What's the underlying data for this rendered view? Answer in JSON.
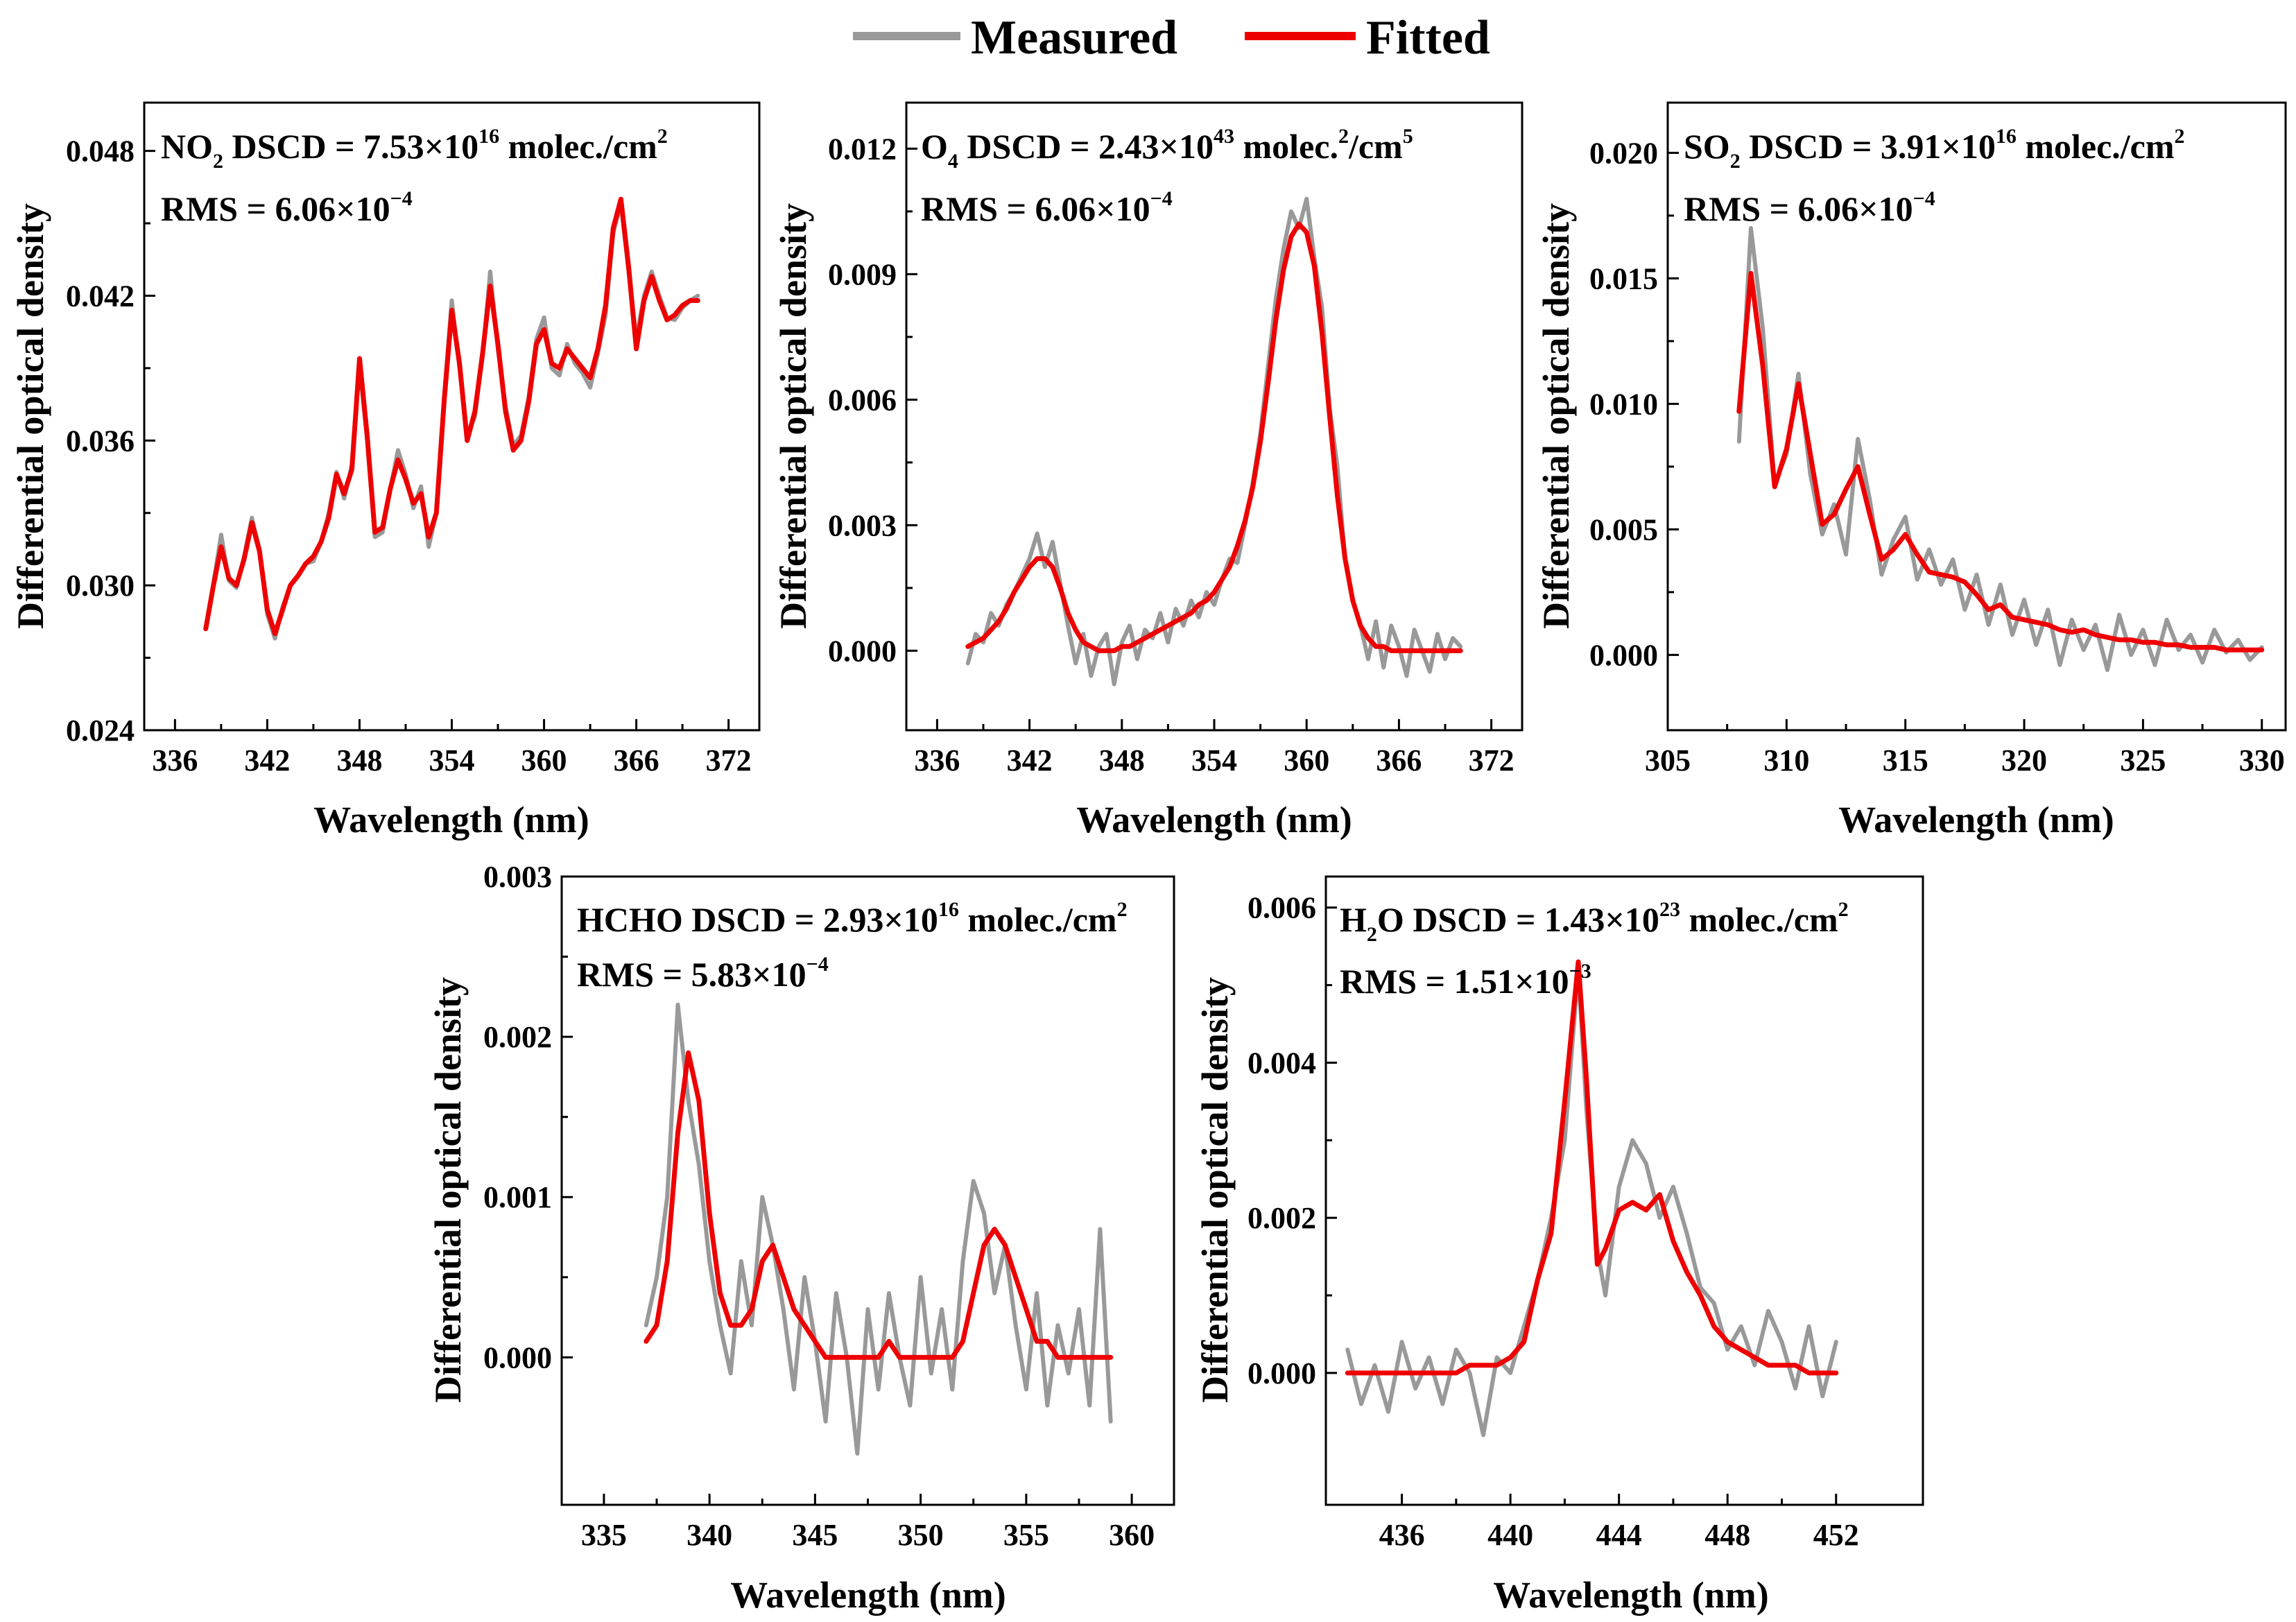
{
  "legend": {
    "entries": [
      {
        "label": "Measured",
        "color": "#999999"
      },
      {
        "label": "Fitted",
        "color": "#ee0000"
      }
    ]
  },
  "chart_data": [
    {
      "type": "line",
      "id": "no2",
      "xlabel": "Wavelength (nm)",
      "ylabel": "Differential optical density",
      "xlim": [
        334,
        374
      ],
      "ylim": [
        0.024,
        0.05
      ],
      "xticks": [
        336,
        342,
        348,
        354,
        360,
        366,
        372
      ],
      "yticks": [
        0.024,
        0.03,
        0.036,
        0.042,
        0.048
      ],
      "ytick_labels": [
        "0.024",
        "0.030",
        "0.036",
        "0.042",
        "0.048"
      ],
      "annotation": {
        "species_main": "NO",
        "species_sub": "2",
        "dscd_text": " DSCD = 7.53×10",
        "dscd_exp": "16",
        "dscd_unit": " molec./cm",
        "dscd_unit_exp": "2",
        "rms_text": "RMS = 6.06×10",
        "rms_exp": "−4"
      },
      "x": [
        338.0,
        338.5,
        339.0,
        339.5,
        340.0,
        340.5,
        341.0,
        341.5,
        342.0,
        342.5,
        343.0,
        343.5,
        344.0,
        344.5,
        345.0,
        345.5,
        346.0,
        346.5,
        347.0,
        347.5,
        348.0,
        348.5,
        349.0,
        349.5,
        350.0,
        350.5,
        351.0,
        351.5,
        352.0,
        352.5,
        353.0,
        353.5,
        354.0,
        354.5,
        355.0,
        355.5,
        356.0,
        356.5,
        357.0,
        357.5,
        358.0,
        358.5,
        359.0,
        359.5,
        360.0,
        360.5,
        361.0,
        361.5,
        362.0,
        362.5,
        363.0,
        363.5,
        364.0,
        364.5,
        365.0,
        365.5,
        366.0,
        366.5,
        367.0,
        367.5,
        368.0,
        368.5,
        369.0,
        369.5,
        370.0
      ],
      "series": [
        {
          "name": "Measured",
          "values": [
            0.0282,
            0.0301,
            0.0321,
            0.0302,
            0.0299,
            0.0312,
            0.0328,
            0.0315,
            0.0288,
            0.0278,
            0.0291,
            0.03,
            0.0304,
            0.0309,
            0.031,
            0.0318,
            0.033,
            0.0347,
            0.0336,
            0.035,
            0.0391,
            0.036,
            0.032,
            0.0322,
            0.034,
            0.0356,
            0.0346,
            0.0332,
            0.0341,
            0.0316,
            0.033,
            0.0378,
            0.0418,
            0.039,
            0.0362,
            0.037,
            0.0395,
            0.043,
            0.0398,
            0.0374,
            0.0358,
            0.0362,
            0.0378,
            0.0402,
            0.0411,
            0.039,
            0.0387,
            0.04,
            0.0392,
            0.0388,
            0.0382,
            0.0396,
            0.0412,
            0.0446,
            0.0458,
            0.043,
            0.0402,
            0.042,
            0.043,
            0.042,
            0.0411,
            0.041,
            0.0415,
            0.0418,
            0.042
          ]
        },
        {
          "name": "Fitted",
          "values": [
            0.0282,
            0.03,
            0.0316,
            0.0303,
            0.03,
            0.0311,
            0.0326,
            0.0314,
            0.029,
            0.028,
            0.029,
            0.03,
            0.0304,
            0.0309,
            0.0312,
            0.0318,
            0.0328,
            0.0346,
            0.0338,
            0.0348,
            0.0394,
            0.0362,
            0.0322,
            0.0324,
            0.034,
            0.0352,
            0.0344,
            0.0334,
            0.0338,
            0.032,
            0.033,
            0.0376,
            0.0414,
            0.0392,
            0.036,
            0.0372,
            0.0396,
            0.0424,
            0.04,
            0.0372,
            0.0356,
            0.036,
            0.0376,
            0.04,
            0.0406,
            0.0392,
            0.039,
            0.0398,
            0.0394,
            0.039,
            0.0386,
            0.0398,
            0.0416,
            0.0448,
            0.046,
            0.0432,
            0.0398,
            0.0418,
            0.0428,
            0.0418,
            0.041,
            0.0412,
            0.0416,
            0.0418,
            0.0418
          ]
        }
      ]
    },
    {
      "type": "line",
      "id": "o4",
      "xlabel": "Wavelength (nm)",
      "ylabel": "Differential optical density",
      "xlim": [
        334,
        374
      ],
      "ylim": [
        -0.0019,
        0.0131
      ],
      "xticks": [
        336,
        342,
        348,
        354,
        360,
        366,
        372
      ],
      "yticks": [
        0.0,
        0.003,
        0.006,
        0.009,
        0.012
      ],
      "ytick_labels": [
        "0.000",
        "0.003",
        "0.006",
        "0.009",
        "0.012"
      ],
      "annotation": {
        "species_main": "O",
        "species_sub": "4",
        "dscd_text": " DSCD = 2.43×10",
        "dscd_exp": "43",
        "dscd_unit": " molec.",
        "dscd_unit_exp": "2",
        "dscd_unit_tail": "/cm",
        "dscd_unit_tail_exp": "5",
        "rms_text": "RMS = 6.06×10",
        "rms_exp": "−4"
      },
      "x": [
        338.0,
        338.5,
        339.0,
        339.5,
        340.0,
        340.5,
        341.0,
        341.5,
        342.0,
        342.5,
        343.0,
        343.5,
        344.0,
        344.5,
        345.0,
        345.5,
        346.0,
        346.5,
        347.0,
        347.5,
        348.0,
        348.5,
        349.0,
        349.5,
        350.0,
        350.5,
        351.0,
        351.5,
        352.0,
        352.5,
        353.0,
        353.5,
        354.0,
        354.5,
        355.0,
        355.5,
        356.0,
        356.5,
        357.0,
        357.5,
        358.0,
        358.5,
        359.0,
        359.5,
        360.0,
        360.5,
        361.0,
        361.5,
        362.0,
        362.5,
        363.0,
        363.5,
        364.0,
        364.5,
        365.0,
        365.5,
        366.0,
        366.5,
        367.0,
        367.5,
        368.0,
        368.5,
        369.0,
        369.5,
        370.0
      ],
      "series": [
        {
          "name": "Measured",
          "values": [
            -0.0003,
            0.0004,
            0.0002,
            0.0009,
            0.0006,
            0.0011,
            0.0014,
            0.0018,
            0.0022,
            0.0028,
            0.002,
            0.0026,
            0.0016,
            0.0006,
            -0.0003,
            0.0004,
            -0.0006,
            0.0001,
            0.0004,
            -0.0008,
            0.0002,
            0.0006,
            -0.0002,
            0.0005,
            0.0003,
            0.0009,
            0.0002,
            0.001,
            0.0006,
            0.0012,
            0.0008,
            0.0014,
            0.0011,
            0.0017,
            0.0022,
            0.0021,
            0.003,
            0.004,
            0.0052,
            0.0068,
            0.0084,
            0.0096,
            0.0105,
            0.0101,
            0.0108,
            0.0094,
            0.0082,
            0.0058,
            0.0044,
            0.0022,
            0.0012,
            0.0006,
            -0.0002,
            0.0007,
            -0.0004,
            0.0006,
            0.0001,
            -0.0006,
            0.0005,
            0.0,
            -0.0005,
            0.0004,
            -0.0002,
            0.0003,
            0.0001
          ]
        },
        {
          "name": "Fitted",
          "values": [
            0.0001,
            0.0002,
            0.0003,
            0.0005,
            0.0007,
            0.001,
            0.0014,
            0.0017,
            0.002,
            0.0022,
            0.0022,
            0.002,
            0.0015,
            0.0009,
            0.0005,
            0.0002,
            0.0001,
            0.0,
            0.0,
            0.0,
            0.0001,
            0.0001,
            0.0002,
            0.0003,
            0.0004,
            0.0005,
            0.0006,
            0.0007,
            0.0008,
            0.0009,
            0.0011,
            0.0012,
            0.0014,
            0.0017,
            0.002,
            0.0025,
            0.0031,
            0.0039,
            0.005,
            0.0064,
            0.0079,
            0.0091,
            0.0099,
            0.0102,
            0.01,
            0.0092,
            0.0076,
            0.0056,
            0.0037,
            0.0022,
            0.0012,
            0.0006,
            0.0003,
            0.0001,
            0.0001,
            0.0,
            0.0,
            0.0,
            0.0,
            0.0,
            0.0,
            0.0,
            0.0,
            0.0,
            0.0
          ]
        }
      ]
    },
    {
      "type": "line",
      "id": "so2",
      "xlabel": "Wavelength (nm)",
      "ylabel": "Differential optical density",
      "xlim": [
        305,
        331
      ],
      "ylim": [
        -0.003,
        0.022
      ],
      "xticks": [
        305,
        310,
        315,
        320,
        325,
        330
      ],
      "yticks": [
        0.0,
        0.005,
        0.01,
        0.015,
        0.02
      ],
      "ytick_labels": [
        "0.000",
        "0.005",
        "0.010",
        "0.015",
        "0.020"
      ],
      "annotation": {
        "species_main": "SO",
        "species_sub": "2",
        "dscd_text": " DSCD = 3.91×10",
        "dscd_exp": "16",
        "dscd_unit": " molec./cm",
        "dscd_unit_exp": "2",
        "rms_text": "RMS = 6.06×10",
        "rms_exp": "−4"
      },
      "x": [
        308.0,
        308.5,
        309.0,
        309.5,
        310.0,
        310.5,
        311.0,
        311.5,
        312.0,
        312.5,
        313.0,
        313.5,
        314.0,
        314.5,
        315.0,
        315.5,
        316.0,
        316.5,
        317.0,
        317.5,
        318.0,
        318.5,
        319.0,
        319.5,
        320.0,
        320.5,
        321.0,
        321.5,
        322.0,
        322.5,
        323.0,
        323.5,
        324.0,
        324.5,
        325.0,
        325.5,
        326.0,
        326.5,
        327.0,
        327.5,
        328.0,
        328.5,
        329.0,
        329.5,
        330.0
      ],
      "series": [
        {
          "name": "Measured",
          "values": [
            0.0085,
            0.017,
            0.013,
            0.0068,
            0.008,
            0.0112,
            0.0072,
            0.0048,
            0.006,
            0.004,
            0.0086,
            0.0062,
            0.0032,
            0.0046,
            0.0055,
            0.003,
            0.0042,
            0.0028,
            0.0038,
            0.0018,
            0.0032,
            0.0012,
            0.0028,
            0.0008,
            0.0022,
            0.0004,
            0.0018,
            -0.0004,
            0.0014,
            0.0002,
            0.0012,
            -0.0006,
            0.0016,
            0.0,
            0.001,
            -0.0004,
            0.0014,
            0.0002,
            0.0008,
            -0.0003,
            0.001,
            0.0001,
            0.0006,
            -0.0002,
            0.0003
          ]
        },
        {
          "name": "Fitted",
          "values": [
            0.0097,
            0.0152,
            0.0115,
            0.0067,
            0.0082,
            0.0108,
            0.008,
            0.0052,
            0.0056,
            0.0066,
            0.0075,
            0.0056,
            0.0038,
            0.0042,
            0.0048,
            0.004,
            0.0033,
            0.0032,
            0.0031,
            0.0029,
            0.0024,
            0.0018,
            0.002,
            0.0015,
            0.0014,
            0.0013,
            0.0012,
            0.001,
            0.0009,
            0.001,
            0.0008,
            0.0007,
            0.0006,
            0.0006,
            0.0005,
            0.0005,
            0.0004,
            0.0004,
            0.0003,
            0.0003,
            0.0003,
            0.0002,
            0.0002,
            0.0002,
            0.0002
          ]
        }
      ]
    },
    {
      "type": "line",
      "id": "hcho",
      "xlabel": "Wavelength (nm)",
      "ylabel": "Differential optical density",
      "xlim": [
        333,
        362
      ],
      "ylim": [
        -0.00092,
        0.003
      ],
      "xticks": [
        335,
        340,
        345,
        350,
        355,
        360
      ],
      "yticks": [
        0.0,
        0.001,
        0.002,
        0.003
      ],
      "ytick_labels": [
        "0.000",
        "0.001",
        "0.002",
        "0.003"
      ],
      "annotation": {
        "species_main": "HCHO",
        "species_sub": "",
        "dscd_text": " DSCD = 2.93×10",
        "dscd_exp": "16",
        "dscd_unit": " molec./cm",
        "dscd_unit_exp": "2",
        "rms_text": "RMS = 5.83×10",
        "rms_exp": "−4"
      },
      "x": [
        337.0,
        337.5,
        338.0,
        338.5,
        339.0,
        339.5,
        340.0,
        340.5,
        341.0,
        341.5,
        342.0,
        342.5,
        343.0,
        343.5,
        344.0,
        344.5,
        345.0,
        345.5,
        346.0,
        346.5,
        347.0,
        347.5,
        348.0,
        348.5,
        349.0,
        349.5,
        350.0,
        350.5,
        351.0,
        351.5,
        352.0,
        352.5,
        353.0,
        353.5,
        354.0,
        354.5,
        355.0,
        355.5,
        356.0,
        356.5,
        357.0,
        357.5,
        358.0,
        358.5,
        359.0
      ],
      "series": [
        {
          "name": "Measured",
          "values": [
            0.0002,
            0.0005,
            0.001,
            0.0022,
            0.0016,
            0.0012,
            0.0006,
            0.0002,
            -0.0001,
            0.0006,
            0.0002,
            0.001,
            0.0007,
            0.0003,
            -0.0002,
            0.0005,
            0.0001,
            -0.0004,
            0.0004,
            0.0,
            -0.0006,
            0.0003,
            -0.0002,
            0.0004,
            0.0,
            -0.0003,
            0.0005,
            -0.0001,
            0.0003,
            -0.0002,
            0.0006,
            0.0011,
            0.0009,
            0.0004,
            0.0007,
            0.0002,
            -0.0002,
            0.0004,
            -0.0003,
            0.0002,
            -0.0001,
            0.0003,
            -0.0003,
            0.0008,
            -0.0004
          ]
        },
        {
          "name": "Fitted",
          "values": [
            0.0001,
            0.0002,
            0.0006,
            0.0014,
            0.0019,
            0.0016,
            0.0009,
            0.0004,
            0.0002,
            0.0002,
            0.0003,
            0.0006,
            0.0007,
            0.0005,
            0.0003,
            0.0002,
            0.0001,
            0.0,
            0.0,
            0.0,
            0.0,
            0.0,
            0.0,
            0.0001,
            0.0,
            0.0,
            0.0,
            0.0,
            0.0,
            0.0,
            0.0001,
            0.0004,
            0.0007,
            0.0008,
            0.0007,
            0.0005,
            0.0003,
            0.0001,
            0.0001,
            0.0,
            0.0,
            0.0,
            0.0,
            0.0,
            0.0
          ]
        }
      ]
    },
    {
      "type": "line",
      "id": "h2o",
      "xlabel": "Wavelength (nm)",
      "ylabel": "Differential optical density",
      "xlim": [
        433.2,
        455.2
      ],
      "ylim": [
        -0.0017,
        0.0064
      ],
      "xticks": [
        436,
        440,
        444,
        448,
        452
      ],
      "yticks": [
        0.0,
        0.002,
        0.004,
        0.006
      ],
      "ytick_labels": [
        "0.000",
        "0.002",
        "0.004",
        "0.006"
      ],
      "annotation": {
        "species_main": "H",
        "species_sub": "2",
        "species_tail": "O",
        "dscd_text": " DSCD = 1.43×10",
        "dscd_exp": "23",
        "dscd_unit": " molec./cm",
        "dscd_unit_exp": "2",
        "rms_text": "RMS = 1.51×10",
        "rms_exp": "−3"
      },
      "x": [
        434.0,
        434.5,
        435.0,
        435.5,
        436.0,
        436.5,
        437.0,
        437.5,
        438.0,
        438.5,
        439.0,
        439.5,
        440.0,
        440.5,
        441.0,
        441.5,
        442.0,
        442.5,
        442.8,
        443.2,
        443.5,
        444.0,
        444.5,
        445.0,
        445.5,
        446.0,
        446.5,
        447.0,
        447.5,
        448.0,
        448.5,
        449.0,
        449.5,
        450.0,
        450.5,
        451.0,
        451.5,
        452.0
      ],
      "series": [
        {
          "name": "Measured",
          "values": [
            0.0003,
            -0.0004,
            0.0001,
            -0.0005,
            0.0004,
            -0.0002,
            0.0002,
            -0.0004,
            0.0003,
            0.0,
            -0.0008,
            0.0002,
            0.0,
            0.0006,
            0.0012,
            0.002,
            0.003,
            0.0052,
            0.0034,
            0.0016,
            0.001,
            0.0024,
            0.003,
            0.0027,
            0.002,
            0.0024,
            0.0018,
            0.0011,
            0.0009,
            0.0003,
            0.0006,
            0.0001,
            0.0008,
            0.0004,
            -0.0002,
            0.0006,
            -0.0003,
            0.0004
          ]
        },
        {
          "name": "Fitted",
          "values": [
            0.0,
            0.0,
            0.0,
            0.0,
            0.0,
            0.0,
            0.0,
            0.0,
            0.0,
            0.0001,
            0.0001,
            0.0001,
            0.0002,
            0.0004,
            0.0012,
            0.0018,
            0.0035,
            0.0053,
            0.0038,
            0.0014,
            0.0016,
            0.0021,
            0.0022,
            0.0021,
            0.0023,
            0.0017,
            0.0013,
            0.001,
            0.0006,
            0.0004,
            0.0003,
            0.0002,
            0.0001,
            0.0001,
            0.0001,
            0.0,
            0.0,
            0.0
          ]
        }
      ]
    }
  ]
}
